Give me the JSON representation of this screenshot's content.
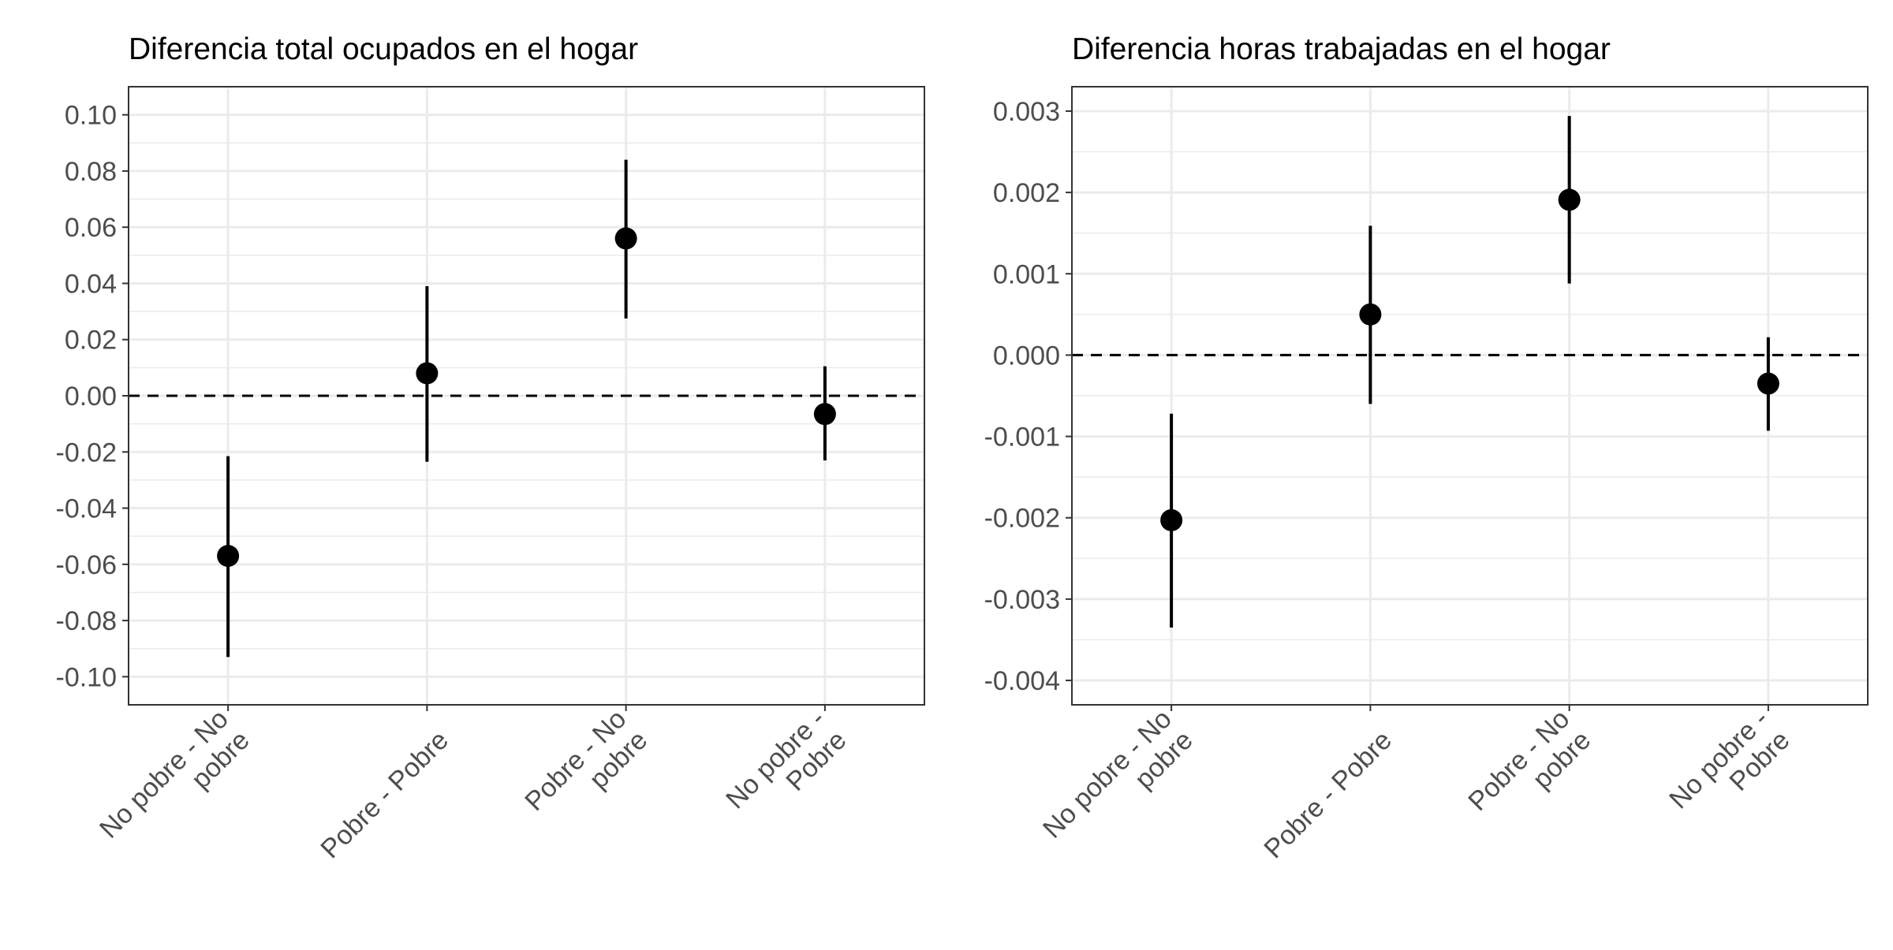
{
  "chart_data": [
    {
      "type": "scatter",
      "title": "Diferencia total ocupados en el hogar",
      "xlabel": "",
      "ylabel": "",
      "categories": [
        [
          "No pobre - No",
          "pobre"
        ],
        [
          "Pobre - Pobre"
        ],
        [
          "Pobre - No",
          "pobre"
        ],
        [
          "No pobre -",
          "Pobre"
        ]
      ],
      "estimates": [
        -0.057,
        0.008,
        0.056,
        -0.0065
      ],
      "ci_low": [
        -0.093,
        -0.0235,
        0.0275,
        -0.023
      ],
      "ci_high": [
        -0.0215,
        0.039,
        0.084,
        0.0105
      ],
      "ylim": [
        -0.11,
        0.11
      ],
      "yticks": [
        -0.1,
        -0.08,
        -0.06,
        -0.04,
        -0.02,
        0.0,
        0.02,
        0.04,
        0.06,
        0.08,
        0.1
      ],
      "ytick_labels": [
        "-0.10",
        "-0.08",
        "-0.06",
        "-0.04",
        "-0.02",
        "0.00",
        "0.02",
        "0.04",
        "0.06",
        "0.08",
        "0.10"
      ],
      "reference_line": 0,
      "grid": true
    },
    {
      "type": "scatter",
      "title": "Diferencia horas trabajadas en el hogar",
      "xlabel": "",
      "ylabel": "",
      "categories": [
        [
          "No pobre - No",
          "pobre"
        ],
        [
          "Pobre - Pobre"
        ],
        [
          "Pobre - No",
          "pobre"
        ],
        [
          "No pobre -",
          "Pobre"
        ]
      ],
      "estimates": [
        -0.00203,
        0.0005,
        0.00191,
        -0.00035
      ],
      "ci_low": [
        -0.00335,
        -0.0006,
        0.00088,
        -0.00093
      ],
      "ci_high": [
        -0.00072,
        0.00159,
        0.00294,
        0.00022
      ],
      "ylim": [
        -0.0043,
        0.0033
      ],
      "yticks": [
        -0.004,
        -0.003,
        -0.002,
        -0.001,
        0.0,
        0.001,
        0.002,
        0.003
      ],
      "ytick_labels": [
        "-0.004",
        "-0.003",
        "-0.002",
        "-0.001",
        "0.000",
        "0.001",
        "0.002",
        "0.003"
      ],
      "reference_line": 0,
      "grid": true
    }
  ]
}
